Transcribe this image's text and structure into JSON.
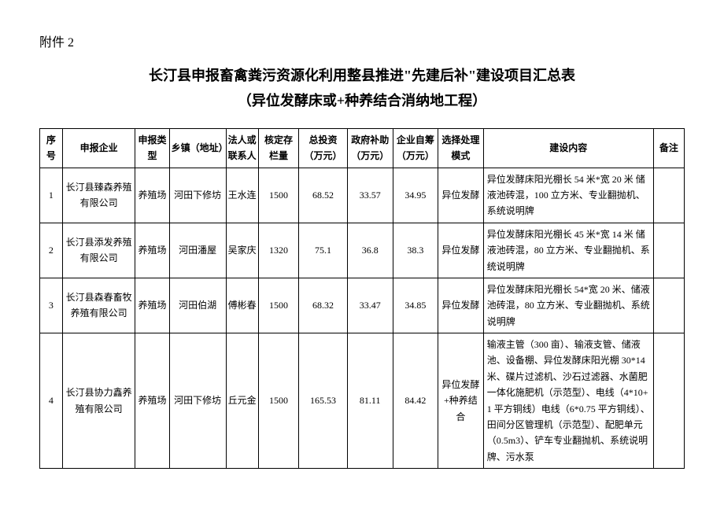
{
  "attachment_label": "附件 2",
  "title_line1": "长汀县申报畜禽粪污资源化利用整县推进\"先建后补\"建设项目汇总表",
  "title_line2": "（异位发酵床或+种养结合消纳地工程）",
  "columns": {
    "seq": "序号",
    "enterprise": "申报企业",
    "type": "申报类型",
    "town": "乡镇（地址）",
    "person": "法人或联系人",
    "stock": "核定存栏量",
    "invest": "总投资（万元）",
    "gov": "政府补助（万元）",
    "self": "企业自筹（万元）",
    "mode": "选择处理模式",
    "content": "建设内容",
    "note": "备注"
  },
  "rows": [
    {
      "seq": "1",
      "enterprise": "长汀县臻森养殖有限公司",
      "type": "养殖场",
      "town": "河田下修坊",
      "person": "王水连",
      "stock": "1500",
      "invest": "68.52",
      "gov": "33.57",
      "self": "34.95",
      "mode": "异位发酵",
      "content": "异位发酵床阳光棚长 54 米*宽 20 米 储液池砖混，100 立方米、专业翻抛机、系统说明牌",
      "note": ""
    },
    {
      "seq": "2",
      "enterprise": "长汀县添发养殖有限公司",
      "type": "养殖场",
      "town": "河田潘屋",
      "person": "吴家庆",
      "stock": "1320",
      "invest": "75.1",
      "gov": "36.8",
      "self": "38.3",
      "mode": "异位发酵",
      "content": "异位发酵床阳光棚长 45 米*宽 14 米 储液池砖混，80 立方米、专业翻抛机、系统说明牌",
      "note": ""
    },
    {
      "seq": "3",
      "enterprise": "长汀县森春畜牧养殖有限公司",
      "type": "养殖场",
      "town": "河田伯湖",
      "person": "傅彬春",
      "stock": "1500",
      "invest": "68.32",
      "gov": "33.47",
      "self": "34.85",
      "mode": "异位发酵",
      "content": "异位发酵床阳光棚长 54*宽 20 米、储液池砖混，80 立方米、专业翻抛机、系统说明牌",
      "note": ""
    },
    {
      "seq": "4",
      "enterprise": "长汀县协力鑫养殖有限公司",
      "type": "养殖场",
      "town": "河田下修坊",
      "person": "丘元金",
      "stock": "1500",
      "invest": "165.53",
      "gov": "81.11",
      "self": "84.42",
      "mode": "异位发酵+种养结合",
      "content": "输液主管（300 亩）、输液支管、储液池、设备棚、异位发酵床阳光棚 30*14 米、碟片过滤机、沙石过滤器、水菌肥一体化施肥机（示范型）、电线（4*10+1 平方铜线）电线（6*0.75 平方铜线）、田间分区管理机（示范型）、配肥单元（0.5m3）、铲车专业翻抛机、系统说明牌、污水泵",
      "note": ""
    }
  ]
}
